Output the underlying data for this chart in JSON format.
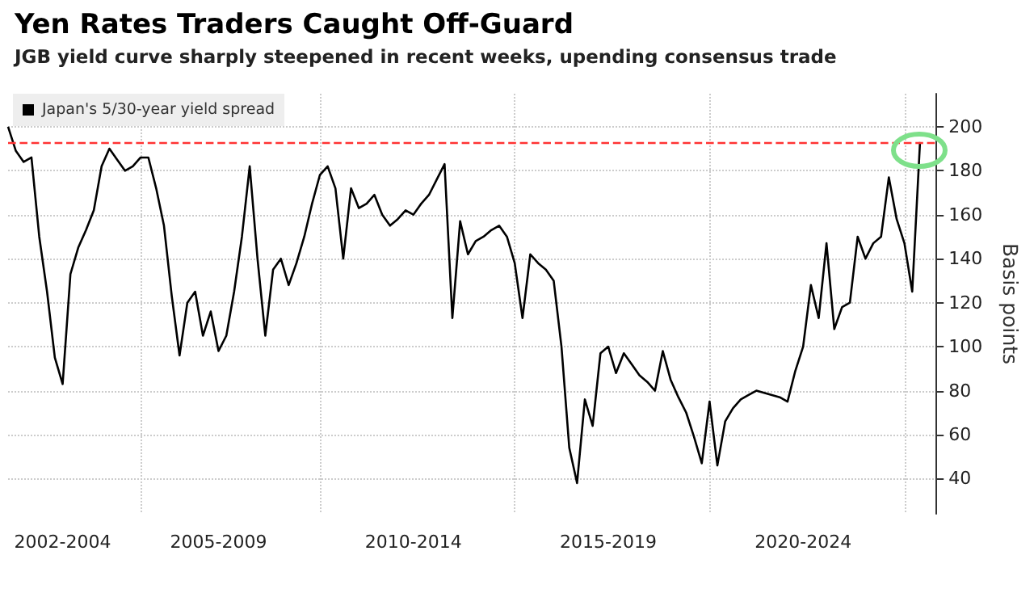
{
  "chart_data": {
    "type": "line",
    "title": "Yen Rates Traders Caught Off-Guard",
    "subtitle": "JGB yield curve sharply steepened in recent weeks, upending consensus trade",
    "ylabel": "Basis points",
    "categories": [
      null,
      null,
      null,
      null,
      null,
      null,
      null,
      "2002-2004",
      null,
      null,
      null,
      null,
      null,
      null,
      null,
      null,
      null,
      null,
      null,
      null,
      null,
      null,
      null,
      null,
      null,
      null,
      null,
      "2005-2009",
      null,
      null,
      null,
      null,
      null,
      null,
      null,
      null,
      null,
      null,
      null,
      null,
      null,
      null,
      null,
      null,
      null,
      null,
      null,
      null,
      null,
      null,
      null,
      null,
      "2010-2014",
      null,
      null,
      null,
      null,
      null,
      null,
      null,
      null,
      null,
      null,
      null,
      null,
      null,
      null,
      null,
      null,
      null,
      null,
      null,
      null,
      null,
      null,
      null,
      null,
      "2015-2019",
      null,
      null,
      null,
      null,
      null,
      null,
      null,
      null,
      null,
      null,
      null,
      null,
      null,
      null,
      null,
      null,
      null,
      null,
      null,
      null,
      null,
      null,
      null,
      null,
      "2020-2024",
      null,
      null,
      null,
      null,
      null,
      null,
      null,
      null,
      null,
      null,
      null,
      null,
      null,
      null,
      null,
      null,
      null
    ],
    "series": [
      {
        "name": "Japan's 5/30-year yield spread",
        "color": "#000000",
        "values": [
          200,
          189,
          184,
          186,
          150,
          125,
          95,
          83,
          133,
          145,
          153,
          162,
          182,
          190,
          185,
          180,
          182,
          186,
          186,
          172,
          155,
          123,
          96,
          120,
          125,
          105,
          116,
          98,
          105,
          125,
          150,
          182,
          140,
          105,
          135,
          140,
          128,
          138,
          150,
          165,
          178,
          182,
          172,
          140,
          172,
          163,
          165,
          169,
          160,
          155,
          158,
          162,
          160,
          165,
          169,
          176,
          183,
          113,
          157,
          142,
          148,
          150,
          153,
          155,
          150,
          138,
          113,
          142,
          138,
          135,
          130,
          100,
          54,
          38,
          76,
          64,
          97,
          100,
          88,
          97,
          92,
          87,
          84,
          80,
          98,
          85,
          77,
          70,
          59,
          47,
          75,
          46,
          66,
          72,
          76,
          78,
          80,
          79,
          78,
          77,
          75,
          89,
          100,
          128,
          113,
          147,
          108,
          118,
          120,
          150,
          140,
          147,
          150,
          177,
          158,
          147,
          125,
          193,
          null,
          null
        ]
      }
    ],
    "ylim": [
      24,
      215
    ],
    "yticks": [
      40,
      60,
      80,
      100,
      120,
      140,
      160,
      180,
      200
    ],
    "ref_lines": [
      {
        "axis": "y",
        "value": 193,
        "color": "#ff3333",
        "line_style": "dashed"
      }
    ],
    "grid": true,
    "legend": "top left",
    "marker": "none",
    "line_style": "solid"
  }
}
